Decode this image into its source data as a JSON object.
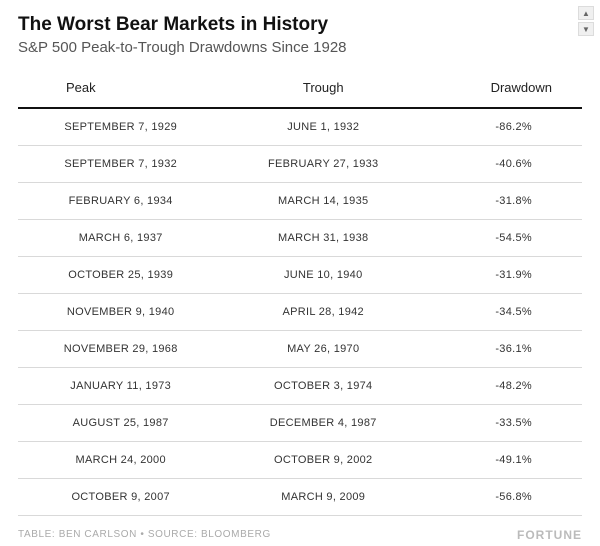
{
  "header": {
    "title": "The Worst Bear Markets in History",
    "subtitle": "S&P 500 Peak-to-Trough Drawdowns Since 1928"
  },
  "table": {
    "type": "table",
    "columns": [
      "Peak",
      "Trough",
      "Drawdown"
    ],
    "rows": [
      [
        "SEPTEMBER 7, 1929",
        "JUNE 1, 1932",
        "-86.2%"
      ],
      [
        "SEPTEMBER 7, 1932",
        "FEBRUARY 27, 1933",
        "-40.6%"
      ],
      [
        "FEBRUARY 6, 1934",
        "MARCH 14, 1935",
        "-31.8%"
      ],
      [
        "MARCH 6, 1937",
        "MARCH 31, 1938",
        "-54.5%"
      ],
      [
        "OCTOBER 25, 1939",
        "JUNE 10, 1940",
        "-31.9%"
      ],
      [
        "NOVEMBER 9, 1940",
        "APRIL 28, 1942",
        "-34.5%"
      ],
      [
        "NOVEMBER 29, 1968",
        "MAY 26, 1970",
        "-36.1%"
      ],
      [
        "JANUARY 11, 1973",
        "OCTOBER 3, 1974",
        "-48.2%"
      ],
      [
        "AUGUST 25, 1987",
        "DECEMBER 4, 1987",
        "-33.5%"
      ],
      [
        "MARCH 24, 2000",
        "OCTOBER 9, 2002",
        "-49.1%"
      ],
      [
        "OCTOBER 9, 2007",
        "MARCH 9, 2009",
        "-56.8%"
      ]
    ],
    "header_border_color": "#111111",
    "row_border_color": "#d9d9d9",
    "header_fontsize": 13,
    "cell_fontsize": 11
  },
  "footer": {
    "credits": "TABLE: BEN CARLSON • SOURCE: BLOOMBERG",
    "brand": "FORTUNE"
  },
  "colors": {
    "background": "#ffffff",
    "title_color": "#111111",
    "subtitle_color": "#555555",
    "cell_text": "#333333",
    "footer_text": "#aaaaaa"
  },
  "scroll": {
    "up_glyph": "▲",
    "down_glyph": "▼"
  }
}
